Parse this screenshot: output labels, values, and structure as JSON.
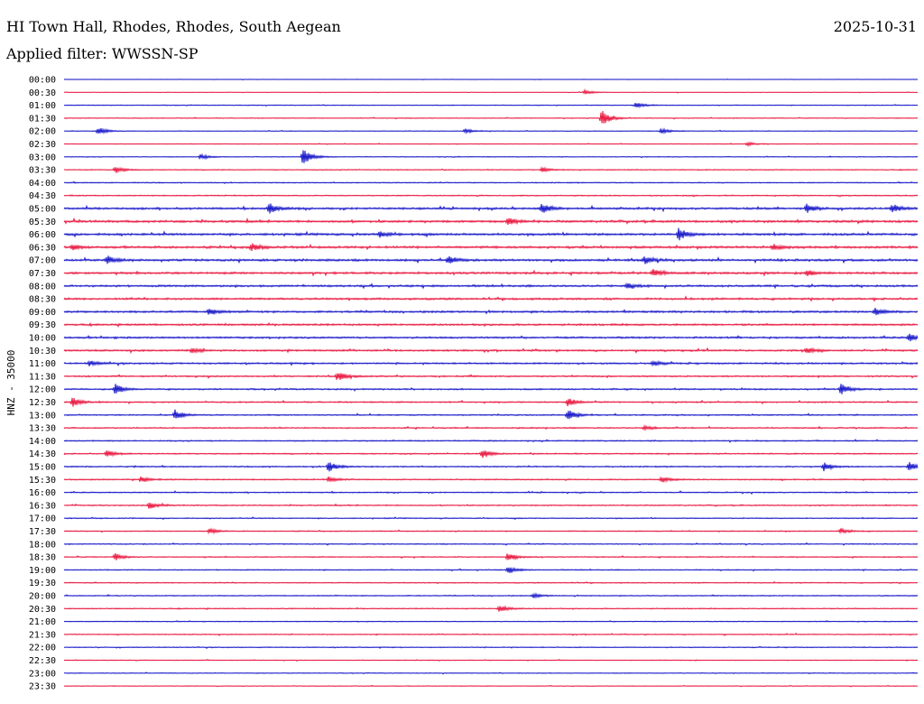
{
  "header": {
    "title": "HI Town Hall, Rhodes, Rhodes, South Aegean",
    "date": "2025-10-31",
    "filter_label": "Applied filter: WWSSN-SP"
  },
  "chart_data": {
    "type": "line",
    "subtype": "helicorder",
    "ylabel": "HNZ - 35000",
    "row_labels": [
      "00:00",
      "00:30",
      "01:00",
      "01:30",
      "02:00",
      "02:30",
      "03:00",
      "03:30",
      "04:00",
      "04:30",
      "05:00",
      "05:30",
      "06:00",
      "06:30",
      "07:00",
      "07:30",
      "08:00",
      "08:30",
      "09:00",
      "09:30",
      "10:00",
      "10:30",
      "11:00",
      "11:30",
      "12:00",
      "12:30",
      "13:00",
      "13:30",
      "14:00",
      "14:30",
      "15:00",
      "15:30",
      "16:00",
      "16:30",
      "17:00",
      "17:30",
      "18:00",
      "18:30",
      "19:00",
      "19:30",
      "20:00",
      "20:30",
      "21:00",
      "21:30",
      "22:00",
      "22:30",
      "23:00",
      "23:30"
    ],
    "trace_colors": [
      "#1414c8",
      "#e8143c"
    ],
    "noise_level": [
      0.15,
      0.2,
      0.3,
      0.3,
      0.25,
      0.25,
      0.3,
      0.35,
      0.4,
      0.45,
      0.8,
      0.9,
      0.9,
      0.9,
      0.9,
      0.85,
      0.8,
      0.8,
      0.8,
      0.75,
      0.75,
      0.7,
      0.65,
      0.6,
      0.6,
      0.55,
      0.5,
      0.5,
      0.5,
      0.5,
      0.5,
      0.5,
      0.45,
      0.45,
      0.4,
      0.4,
      0.4,
      0.4,
      0.4,
      0.4,
      0.4,
      0.4,
      0.35,
      0.35,
      0.35,
      0.3,
      0.3,
      0.25
    ],
    "events": [
      {
        "row": 1,
        "x": 0.61,
        "amp": 2.5
      },
      {
        "row": 2,
        "x": 0.67,
        "amp": 3
      },
      {
        "row": 3,
        "x": 0.63,
        "amp": 9
      },
      {
        "row": 4,
        "x": 0.04,
        "amp": 5
      },
      {
        "row": 4,
        "x": 0.47,
        "amp": 2.5
      },
      {
        "row": 4,
        "x": 0.7,
        "amp": 3
      },
      {
        "row": 5,
        "x": 0.8,
        "amp": 2
      },
      {
        "row": 6,
        "x": 0.28,
        "amp": 10
      },
      {
        "row": 6,
        "x": 0.16,
        "amp": 3
      },
      {
        "row": 7,
        "x": 0.06,
        "amp": 4
      },
      {
        "row": 7,
        "x": 0.56,
        "amp": 2.5
      },
      {
        "row": 10,
        "x": 0.24,
        "amp": 6
      },
      {
        "row": 10,
        "x": 0.56,
        "amp": 6
      },
      {
        "row": 10,
        "x": 0.87,
        "amp": 5
      },
      {
        "row": 10,
        "x": 0.97,
        "amp": 5
      },
      {
        "row": 11,
        "x": 0.52,
        "amp": 4
      },
      {
        "row": 12,
        "x": 0.72,
        "amp": 7
      },
      {
        "row": 12,
        "x": 0.37,
        "amp": 3
      },
      {
        "row": 13,
        "x": 0.22,
        "amp": 4
      },
      {
        "row": 13,
        "x": 0.01,
        "amp": 3
      },
      {
        "row": 13,
        "x": 0.83,
        "amp": 3
      },
      {
        "row": 14,
        "x": 0.05,
        "amp": 5
      },
      {
        "row": 14,
        "x": 0.45,
        "amp": 4
      },
      {
        "row": 14,
        "x": 0.68,
        "amp": 4
      },
      {
        "row": 15,
        "x": 0.69,
        "amp": 4
      },
      {
        "row": 15,
        "x": 0.87,
        "amp": 3
      },
      {
        "row": 16,
        "x": 0.66,
        "amp": 3
      },
      {
        "row": 18,
        "x": 0.17,
        "amp": 4
      },
      {
        "row": 18,
        "x": 0.95,
        "amp": 4
      },
      {
        "row": 20,
        "x": 0.99,
        "amp": 4
      },
      {
        "row": 21,
        "x": 0.15,
        "amp": 3
      },
      {
        "row": 21,
        "x": 0.87,
        "amp": 3
      },
      {
        "row": 22,
        "x": 0.03,
        "amp": 3
      },
      {
        "row": 22,
        "x": 0.69,
        "amp": 3
      },
      {
        "row": 23,
        "x": 0.32,
        "amp": 5
      },
      {
        "row": 24,
        "x": 0.06,
        "amp": 6
      },
      {
        "row": 24,
        "x": 0.91,
        "amp": 6
      },
      {
        "row": 25,
        "x": 0.01,
        "amp": 5
      },
      {
        "row": 25,
        "x": 0.59,
        "amp": 5
      },
      {
        "row": 26,
        "x": 0.13,
        "amp": 6
      },
      {
        "row": 26,
        "x": 0.59,
        "amp": 6
      },
      {
        "row": 27,
        "x": 0.68,
        "amp": 2.5
      },
      {
        "row": 29,
        "x": 0.05,
        "amp": 4
      },
      {
        "row": 29,
        "x": 0.49,
        "amp": 5
      },
      {
        "row": 30,
        "x": 0.31,
        "amp": 6
      },
      {
        "row": 30,
        "x": 0.89,
        "amp": 5
      },
      {
        "row": 30,
        "x": 0.99,
        "amp": 5
      },
      {
        "row": 31,
        "x": 0.09,
        "amp": 3
      },
      {
        "row": 31,
        "x": 0.31,
        "amp": 3
      },
      {
        "row": 31,
        "x": 0.7,
        "amp": 3
      },
      {
        "row": 33,
        "x": 0.1,
        "amp": 4
      },
      {
        "row": 35,
        "x": 0.17,
        "amp": 3
      },
      {
        "row": 35,
        "x": 0.91,
        "amp": 3
      },
      {
        "row": 37,
        "x": 0.06,
        "amp": 4
      },
      {
        "row": 37,
        "x": 0.52,
        "amp": 5
      },
      {
        "row": 38,
        "x": 0.52,
        "amp": 4
      },
      {
        "row": 40,
        "x": 0.55,
        "amp": 2.5
      },
      {
        "row": 41,
        "x": 0.51,
        "amp": 4
      }
    ]
  }
}
